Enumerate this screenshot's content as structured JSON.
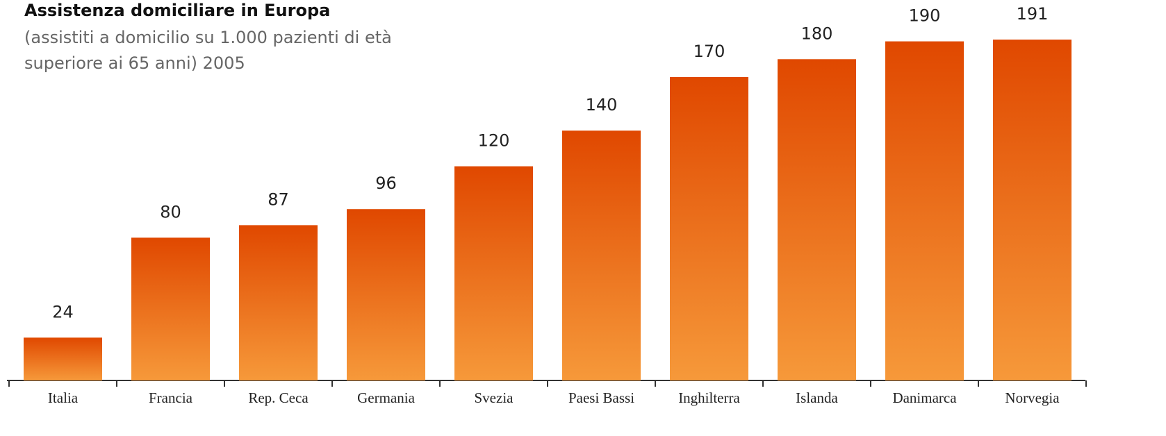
{
  "chart_data": {
    "type": "bar",
    "title": "Assistenza domiciliare in Europa",
    "subtitle": [
      "(assistiti a domicilio su 1.000 pazienti di età",
      "superiore ai 65 anni) 2005"
    ],
    "categories": [
      "Italia",
      "Francia",
      "Rep. Ceca",
      "Germania",
      "Svezia",
      "Paesi Bassi",
      "Inghilterra",
      "Islanda",
      "Danimarca",
      "Norvegia"
    ],
    "values": [
      24,
      80,
      87,
      96,
      120,
      140,
      170,
      180,
      190,
      191
    ],
    "gradient": [
      "#e04800",
      "#f6993a"
    ]
  }
}
